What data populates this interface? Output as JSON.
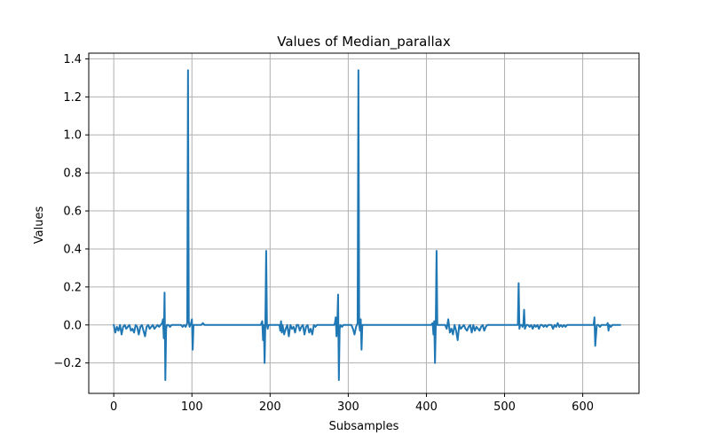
{
  "chart_data": {
    "type": "line",
    "title": "Values of Median_parallax",
    "xlabel": "Subsamples",
    "ylabel": "Values",
    "xlim": [
      -32,
      672
    ],
    "ylim": [
      -0.36,
      1.43
    ],
    "xticks": [
      0,
      100,
      200,
      300,
      400,
      500,
      600
    ],
    "xtick_labels": [
      "0",
      "100",
      "200",
      "300",
      "400",
      "500",
      "600"
    ],
    "yticks": [
      -0.2,
      0.0,
      0.2,
      0.4,
      0.6,
      0.8,
      1.0,
      1.2,
      1.4
    ],
    "ytick_labels": [
      "−0.2",
      "0.0",
      "0.2",
      "0.4",
      "0.6",
      "0.8",
      "1.0",
      "1.2",
      "1.4"
    ],
    "grid": true,
    "line_color": "#1f77b4",
    "series": [
      {
        "x": [
          0,
          2,
          4,
          6,
          8,
          10,
          12,
          14,
          16,
          18,
          20,
          22,
          24,
          26,
          28,
          30,
          32,
          34,
          36,
          38,
          40,
          42,
          44,
          46,
          48,
          50,
          52,
          54,
          56,
          58,
          60,
          62,
          63,
          64,
          65,
          66,
          67,
          68,
          70,
          72,
          74,
          76,
          78,
          80,
          82,
          84,
          86,
          88,
          90,
          92,
          93,
          94,
          95,
          96,
          97,
          98,
          99,
          100,
          101,
          102,
          104,
          106,
          108,
          110,
          112,
          114,
          116,
          118,
          120,
          122,
          124,
          126,
          128,
          130,
          132,
          134,
          136,
          138,
          140,
          142,
          144,
          146,
          148,
          150,
          152,
          154,
          156,
          158,
          160,
          162,
          164,
          166,
          168,
          170,
          172,
          174,
          176,
          178,
          180,
          182,
          184,
          186,
          188,
          190,
          191,
          192,
          193,
          194,
          195,
          196,
          197,
          198,
          200,
          202,
          204,
          206,
          208,
          210,
          212,
          213,
          214,
          215,
          216,
          218,
          220,
          222,
          224,
          226,
          228,
          230,
          232,
          234,
          236,
          238,
          240,
          242,
          244,
          246,
          248,
          250,
          252,
          254,
          256,
          258,
          260,
          262,
          264,
          266,
          268,
          270,
          272,
          274,
          276,
          278,
          280,
          281,
          282,
          283,
          284,
          285,
          286,
          287,
          288,
          289,
          290,
          292,
          294,
          296,
          298,
          300,
          302,
          304,
          306,
          308,
          310,
          311,
          312,
          313,
          314,
          315,
          316,
          317,
          318,
          319,
          320,
          322,
          324,
          326,
          328,
          330,
          332,
          334,
          336,
          338,
          340,
          342,
          344,
          346,
          348,
          350,
          352,
          354,
          356,
          358,
          360,
          362,
          364,
          366,
          368,
          370,
          372,
          374,
          376,
          378,
          380,
          382,
          384,
          386,
          388,
          390,
          392,
          394,
          396,
          398,
          400,
          402,
          404,
          406,
          408,
          409,
          410,
          411,
          412,
          413,
          414,
          415,
          416,
          418,
          420,
          422,
          424,
          426,
          428,
          430,
          432,
          434,
          436,
          438,
          440,
          442,
          444,
          446,
          448,
          450,
          452,
          454,
          456,
          458,
          460,
          462,
          464,
          466,
          468,
          470,
          472,
          474,
          476,
          478,
          480,
          482,
          484,
          486,
          488,
          490,
          492,
          494,
          496,
          498,
          500,
          502,
          504,
          506,
          508,
          510,
          512,
          514,
          515,
          516,
          517,
          518,
          519,
          520,
          522,
          523,
          524,
          525,
          526,
          528,
          530,
          532,
          534,
          536,
          538,
          540,
          542,
          544,
          546,
          548,
          550,
          552,
          554,
          556,
          558,
          560,
          562,
          564,
          566,
          568,
          570,
          572,
          574,
          576,
          578,
          580,
          582,
          584,
          586,
          588,
          590,
          592,
          594,
          596,
          598,
          600,
          602,
          604,
          606,
          608,
          610,
          612,
          613,
          614,
          615,
          616,
          618,
          620,
          622,
          624,
          626,
          628,
          630,
          631,
          632,
          633,
          634,
          636,
          638,
          640,
          642,
          644,
          646,
          648
        ],
        "y": [
          0.0,
          -0.04,
          -0.01,
          -0.03,
          0.0,
          -0.05,
          -0.01,
          0.0,
          -0.02,
          -0.01,
          0.0,
          -0.03,
          -0.02,
          -0.04,
          0.0,
          -0.01,
          -0.05,
          -0.01,
          0.0,
          -0.03,
          -0.06,
          -0.01,
          0.0,
          -0.02,
          -0.01,
          0.0,
          -0.02,
          -0.01,
          0.0,
          -0.01,
          0.0,
          0.01,
          0.03,
          -0.07,
          0.17,
          -0.29,
          -0.02,
          0.0,
          0.0,
          -0.01,
          0.0,
          0.0,
          0.0,
          0.0,
          0.0,
          0.0,
          0.0,
          -0.01,
          0.0,
          -0.01,
          0.0,
          0.01,
          1.34,
          0.02,
          -0.01,
          0.0,
          0.01,
          0.03,
          -0.13,
          0.0,
          0.0,
          0.0,
          0.0,
          0.0,
          0.0,
          0.01,
          0.0,
          0.0,
          0.0,
          0.0,
          0.0,
          0.0,
          0.0,
          0.0,
          0.0,
          0.0,
          0.0,
          0.0,
          0.0,
          0.0,
          0.0,
          0.0,
          0.0,
          0.0,
          0.0,
          0.0,
          0.0,
          0.0,
          0.0,
          0.0,
          0.0,
          0.0,
          0.0,
          0.0,
          0.0,
          0.0,
          0.0,
          0.0,
          0.0,
          0.0,
          0.0,
          0.0,
          0.0,
          0.02,
          -0.08,
          0.0,
          -0.2,
          0.02,
          0.39,
          0.0,
          -0.02,
          0.0,
          0.0,
          0.0,
          0.0,
          0.0,
          0.0,
          0.0,
          0.0,
          -0.03,
          0.02,
          -0.04,
          0.0,
          -0.05,
          -0.02,
          0.0,
          -0.06,
          0.0,
          -0.02,
          -0.01,
          -0.04,
          0.0,
          0.0,
          -0.03,
          -0.01,
          0.0,
          -0.05,
          -0.01,
          0.0,
          -0.04,
          -0.02,
          -0.05,
          0.0,
          -0.01,
          0.0,
          0.0,
          0.0,
          0.0,
          0.0,
          0.0,
          0.0,
          0.0,
          0.0,
          0.0,
          0.0,
          0.0,
          0.0,
          0.01,
          0.04,
          -0.06,
          0.0,
          0.16,
          -0.29,
          -0.02,
          0.0,
          -0.01,
          0.0,
          0.0,
          0.0,
          0.0,
          0.0,
          0.0,
          -0.02,
          -0.05,
          -0.01,
          0.0,
          0.01,
          1.34,
          0.0,
          -0.03,
          0.03,
          -0.13,
          0.0,
          0.0,
          0.0,
          0.0,
          0.0,
          0.0,
          0.0,
          0.0,
          0.0,
          0.0,
          0.0,
          0.0,
          0.0,
          0.0,
          0.0,
          0.0,
          0.0,
          0.0,
          0.0,
          0.0,
          0.0,
          0.0,
          0.0,
          0.0,
          0.0,
          0.0,
          0.0,
          0.0,
          0.0,
          0.0,
          0.0,
          0.0,
          0.0,
          0.0,
          0.0,
          0.0,
          0.0,
          0.0,
          0.0,
          0.0,
          0.0,
          0.0,
          0.0,
          0.0,
          0.0,
          0.0,
          0.01,
          -0.05,
          0.02,
          -0.2,
          0.0,
          0.39,
          0.0,
          0.0,
          0.0,
          0.0,
          0.0,
          0.0,
          0.0,
          -0.02,
          0.03,
          -0.04,
          -0.02,
          -0.05,
          0.0,
          -0.03,
          -0.08,
          0.0,
          -0.02,
          -0.01,
          0.0,
          -0.02,
          -0.03,
          -0.01,
          0.0,
          -0.04,
          0.0,
          -0.03,
          -0.01,
          -0.02,
          -0.03,
          -0.01,
          0.0,
          -0.03,
          -0.01,
          0.0,
          0.0,
          0.0,
          0.0,
          0.0,
          0.0,
          0.0,
          0.0,
          0.0,
          0.0,
          0.0,
          0.0,
          0.0,
          0.0,
          0.0,
          0.0,
          0.0,
          0.0,
          0.0,
          0.0,
          0.0,
          0.0,
          0.22,
          -0.02,
          0.0,
          0.0,
          -0.01,
          0.0,
          0.08,
          -0.02,
          0.0,
          0.0,
          -0.01,
          0.0,
          -0.02,
          0.0,
          -0.01,
          0.0,
          -0.02,
          0.0,
          0.0,
          -0.01,
          0.0,
          -0.01,
          0.0,
          0.0,
          0.0,
          -0.02,
          0.0,
          -0.01,
          0.01,
          -0.01,
          0.0,
          -0.01,
          0.0,
          -0.01,
          0.0,
          0.0,
          0.0,
          0.0,
          0.0,
          0.0,
          0.0,
          0.0,
          0.0,
          0.0,
          0.0,
          0.0,
          0.0,
          0.0,
          0.0,
          0.0,
          0.0,
          0.0,
          0.0,
          0.04,
          -0.11,
          0.0,
          0.0,
          -0.01,
          0.0,
          0.0,
          0.0,
          0.0,
          0.0,
          0.01,
          -0.03,
          0.0,
          -0.01,
          0.0,
          0.0,
          0.0,
          0.0,
          0.0,
          0.0
        ]
      }
    ]
  }
}
